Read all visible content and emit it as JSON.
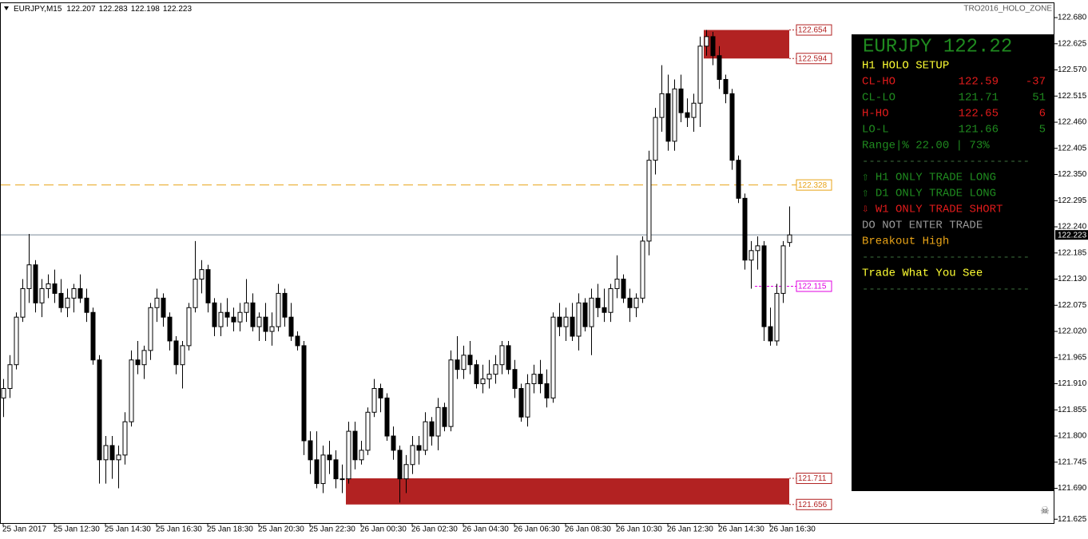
{
  "chart_data": {
    "type": "candlestick",
    "symbol": "EURJPY,M15",
    "header_values": [
      122.207,
      122.283,
      122.198,
      122.223
    ],
    "indicator": "TRO2016_HOLO_ZONE",
    "up_color": "#ffffff",
    "down_color": "#000000",
    "ylim": [
      121.617,
      122.712
    ],
    "yticks": [
      {
        "value": 122.68,
        "label": "122.680"
      },
      122.625,
      {
        "value": 122.57,
        "label": "122.570"
      },
      122.515,
      {
        "value": 122.46,
        "label": "122.460"
      },
      122.405,
      {
        "value": 122.35,
        "label": "122.350"
      },
      122.295,
      {
        "value": 122.24,
        "label": "122.240"
      },
      122.185,
      {
        "value": 122.13,
        "label": "122.130"
      },
      122.075,
      {
        "value": 122.02,
        "label": "122.020"
      },
      121.965,
      {
        "value": 121.91,
        "label": "121.910"
      },
      121.855,
      {
        "value": 121.8,
        "label": "121.800"
      },
      121.745,
      {
        "value": 121.69,
        "label": "121.690"
      },
      121.625
    ],
    "current_price": 122.223,
    "levels": [
      {
        "value": 122.328,
        "color": "#e8a317",
        "style": "long"
      },
      {
        "value": 122.115,
        "color": "#e000e0",
        "style": "short"
      }
    ],
    "zones": [
      {
        "high": 122.654,
        "low": 122.594,
        "color": "#b22222"
      },
      {
        "high": 121.711,
        "low": 121.656,
        "color": "#b22222"
      }
    ],
    "categories": [
      "25 Jan 2017",
      null,
      null,
      null,
      null,
      null,
      null,
      null,
      "25 Jan 12:30",
      null,
      null,
      null,
      null,
      null,
      null,
      null,
      "25 Jan 14:30",
      null,
      null,
      null,
      null,
      null,
      null,
      null,
      "25 Jan 16:30",
      null,
      null,
      null,
      null,
      null,
      null,
      null,
      "25 Jan 18:30",
      null,
      null,
      null,
      null,
      null,
      null,
      null,
      "25 Jan 20:30",
      null,
      null,
      null,
      null,
      null,
      null,
      null,
      "25 Jan 22:30",
      null,
      null,
      null,
      null,
      null,
      null,
      null,
      "26 Jan 00:30",
      null,
      null,
      null,
      null,
      null,
      null,
      null,
      "26 Jan 02:30",
      null,
      null,
      null,
      null,
      null,
      null,
      null,
      "26 Jan 04:30",
      null,
      null,
      null,
      null,
      null,
      null,
      null,
      "26 Jan 06:30",
      null,
      null,
      null,
      null,
      null,
      null,
      null,
      "26 Jan 08:30",
      null,
      null,
      null,
      null,
      null,
      null,
      null,
      "26 Jan 10:30",
      null,
      null,
      null,
      null,
      null,
      null,
      null,
      "26 Jan 12:30",
      null,
      null,
      null,
      null,
      null,
      null,
      null,
      "26 Jan 14:30",
      null,
      null,
      null,
      null,
      null,
      null,
      null,
      "26 Jan 16:30",
      null,
      null,
      null
    ],
    "ohlc": [
      [
        121.88,
        121.92,
        121.84,
        121.9
      ],
      [
        121.9,
        121.97,
        121.88,
        121.95
      ],
      [
        121.95,
        122.06,
        121.94,
        122.05
      ],
      [
        122.05,
        122.13,
        122.04,
        122.11
      ],
      [
        122.11,
        122.225,
        122.08,
        122.16
      ],
      [
        122.16,
        122.17,
        122.06,
        122.08
      ],
      [
        122.08,
        122.13,
        122.05,
        122.11
      ],
      [
        122.11,
        122.14,
        122.09,
        122.12
      ],
      [
        122.12,
        122.15,
        122.08,
        122.1
      ],
      [
        122.1,
        122.13,
        122.06,
        122.07
      ],
      [
        122.07,
        122.11,
        122.05,
        122.09
      ],
      [
        122.09,
        122.12,
        122.06,
        122.11
      ],
      [
        122.11,
        122.14,
        122.08,
        122.09
      ],
      [
        122.09,
        122.11,
        122.04,
        122.06
      ],
      [
        122.06,
        122.07,
        121.95,
        121.96
      ],
      [
        121.96,
        121.97,
        121.7,
        121.75
      ],
      [
        121.75,
        121.8,
        121.7,
        121.78
      ],
      [
        121.78,
        121.8,
        121.71,
        121.75
      ],
      [
        121.75,
        121.78,
        121.69,
        121.76
      ],
      [
        121.76,
        121.85,
        121.74,
        121.83
      ],
      [
        121.83,
        121.98,
        121.82,
        121.96
      ],
      [
        121.96,
        122.0,
        121.93,
        121.95
      ],
      [
        121.95,
        121.99,
        121.92,
        121.98
      ],
      [
        121.98,
        122.08,
        121.96,
        122.07
      ],
      [
        122.07,
        122.11,
        122.04,
        122.09
      ],
      [
        122.09,
        122.1,
        122.03,
        122.05
      ],
      [
        122.05,
        122.06,
        121.98,
        122.0
      ],
      [
        122.0,
        122.01,
        121.93,
        121.95
      ],
      [
        121.95,
        122.0,
        121.9,
        121.99
      ],
      [
        121.99,
        122.08,
        121.98,
        122.07
      ],
      [
        122.07,
        122.21,
        122.06,
        122.13
      ],
      [
        122.13,
        122.17,
        122.1,
        122.15
      ],
      [
        122.15,
        122.16,
        122.06,
        122.08
      ],
      [
        122.08,
        122.09,
        122.01,
        122.03
      ],
      [
        122.03,
        122.08,
        122.01,
        122.06
      ],
      [
        122.06,
        122.09,
        122.03,
        122.05
      ],
      [
        122.05,
        122.07,
        122.02,
        122.04
      ],
      [
        122.04,
        122.08,
        122.02,
        122.06
      ],
      [
        122.06,
        122.13,
        122.04,
        122.08
      ],
      [
        122.08,
        122.1,
        122.02,
        122.03
      ],
      [
        122.03,
        122.06,
        122.0,
        122.05
      ],
      [
        122.05,
        122.08,
        122.0,
        122.02
      ],
      [
        122.02,
        122.06,
        121.99,
        122.03
      ],
      [
        122.03,
        122.12,
        122.02,
        122.1
      ],
      [
        122.1,
        122.11,
        122.03,
        122.05
      ],
      [
        122.05,
        122.08,
        122.0,
        122.01
      ],
      [
        122.01,
        122.02,
        121.98,
        121.99
      ],
      [
        121.99,
        122.0,
        121.76,
        121.79
      ],
      [
        121.79,
        121.81,
        121.72,
        121.75
      ],
      [
        121.75,
        121.81,
        121.69,
        121.7
      ],
      [
        121.7,
        121.78,
        121.68,
        121.76
      ],
      [
        121.76,
        121.79,
        121.72,
        121.75
      ],
      [
        121.75,
        121.77,
        121.69,
        121.71
      ],
      [
        121.71,
        121.74,
        121.68,
        121.71
      ],
      [
        121.71,
        121.83,
        121.7,
        121.81
      ],
      [
        121.81,
        121.83,
        121.73,
        121.75
      ],
      [
        121.75,
        121.79,
        121.74,
        121.77
      ],
      [
        121.77,
        121.86,
        121.76,
        121.85
      ],
      [
        121.85,
        121.92,
        121.84,
        121.9
      ],
      [
        121.9,
        121.91,
        121.85,
        121.88
      ],
      [
        121.88,
        121.89,
        121.79,
        121.8
      ],
      [
        121.8,
        121.82,
        121.75,
        121.77
      ],
      [
        121.77,
        121.78,
        121.66,
        121.71
      ],
      [
        121.71,
        121.76,
        121.68,
        121.74
      ],
      [
        121.74,
        121.8,
        121.72,
        121.78
      ],
      [
        121.78,
        121.8,
        121.74,
        121.77
      ],
      [
        121.77,
        121.85,
        121.76,
        121.83
      ],
      [
        121.83,
        121.84,
        121.78,
        121.8
      ],
      [
        121.8,
        121.88,
        121.77,
        121.86
      ],
      [
        121.86,
        121.87,
        121.81,
        121.82
      ],
      [
        121.82,
        121.98,
        121.81,
        121.96
      ],
      [
        121.96,
        122.01,
        121.92,
        121.94
      ],
      [
        121.94,
        121.99,
        121.92,
        121.97
      ],
      [
        121.97,
        122.0,
        121.93,
        121.95
      ],
      [
        121.95,
        121.96,
        121.9,
        121.91
      ],
      [
        121.91,
        121.95,
        121.89,
        121.92
      ],
      [
        121.92,
        121.96,
        121.9,
        121.93
      ],
      [
        121.93,
        121.97,
        121.91,
        121.95
      ],
      [
        121.95,
        122.0,
        121.93,
        121.99
      ],
      [
        121.99,
        122.0,
        121.93,
        121.94
      ],
      [
        121.94,
        121.96,
        121.88,
        121.9
      ],
      [
        121.9,
        121.91,
        121.83,
        121.84
      ],
      [
        121.84,
        121.93,
        121.82,
        121.91
      ],
      [
        121.91,
        121.95,
        121.89,
        121.93
      ],
      [
        121.93,
        121.96,
        121.89,
        121.91
      ],
      [
        121.91,
        121.94,
        121.86,
        121.88
      ],
      [
        121.88,
        122.06,
        121.87,
        122.05
      ],
      [
        122.05,
        122.08,
        122.01,
        122.03
      ],
      [
        122.03,
        122.07,
        122.0,
        122.05
      ],
      [
        122.05,
        122.08,
        122.0,
        122.01
      ],
      [
        122.01,
        122.1,
        121.98,
        122.08
      ],
      [
        122.08,
        122.09,
        122.02,
        122.03
      ],
      [
        122.03,
        122.11,
        121.97,
        122.09
      ],
      [
        122.09,
        122.12,
        122.05,
        122.07
      ],
      [
        122.07,
        122.11,
        122.04,
        122.06
      ],
      [
        122.06,
        122.12,
        122.04,
        122.11
      ],
      [
        122.11,
        122.18,
        122.09,
        122.13
      ],
      [
        122.13,
        122.14,
        122.08,
        122.09
      ],
      [
        122.09,
        122.11,
        122.04,
        122.07
      ],
      [
        122.07,
        122.1,
        122.05,
        122.09
      ],
      [
        122.09,
        122.22,
        122.08,
        122.21
      ],
      [
        122.21,
        122.4,
        122.18,
        122.38
      ],
      [
        122.38,
        122.49,
        122.35,
        122.47
      ],
      [
        122.47,
        122.58,
        122.44,
        122.52
      ],
      [
        122.52,
        122.56,
        122.4,
        122.42
      ],
      [
        122.42,
        122.55,
        122.4,
        122.53
      ],
      [
        122.53,
        122.56,
        122.46,
        122.48
      ],
      [
        122.48,
        122.51,
        122.45,
        122.47
      ],
      [
        122.47,
        122.52,
        122.44,
        122.5
      ],
      [
        122.5,
        122.64,
        122.45,
        122.62
      ],
      [
        122.62,
        122.654,
        122.6,
        122.64
      ],
      [
        122.64,
        122.65,
        122.58,
        122.6
      ],
      [
        122.6,
        122.62,
        122.53,
        122.55
      ],
      [
        122.55,
        122.56,
        122.5,
        122.52
      ],
      [
        122.52,
        122.53,
        122.36,
        122.38
      ],
      [
        122.38,
        122.39,
        122.29,
        122.3
      ],
      [
        122.3,
        122.31,
        122.15,
        122.17
      ],
      [
        122.17,
        122.21,
        122.11,
        122.19
      ],
      [
        122.19,
        122.22,
        122.15,
        122.2
      ],
      [
        122.2,
        122.21,
        122.0,
        122.03
      ],
      [
        122.03,
        122.07,
        121.99,
        122.0
      ],
      [
        122.0,
        122.12,
        121.99,
        122.1
      ],
      [
        122.1,
        122.21,
        122.08,
        122.2
      ],
      [
        122.207,
        122.283,
        122.198,
        122.223
      ]
    ],
    "panel": {
      "title": "EURJPY 122.22",
      "title_color": "#1f8a1f",
      "rows": [
        {
          "text": "H1 HOLO SETUP",
          "color": "#ffff33"
        },
        {
          "cells": [
            "CL-HO",
            122.59,
            -37
          ],
          "color": "#e01b1b"
        },
        {
          "cells": [
            "CL-LO",
            121.71,
            51
          ],
          "color": "#1f8a1f"
        },
        {
          "cells": [
            "H-HO",
            122.65,
            6
          ],
          "color": "#e01b1b"
        },
        {
          "cells": [
            "LO-L",
            121.66,
            5
          ],
          "color": "#1f8a1f"
        },
        {
          "text": "Range|% 22.00 | 73%",
          "color": "#1f8a1f"
        },
        {
          "text": "-------------------------",
          "color": "#3a6a3a"
        },
        {
          "text": "⇧ H1 ONLY TRADE LONG",
          "color": "#1f8a1f"
        },
        {
          "text": "⇧ D1 ONLY TRADE LONG",
          "color": "#1f8a1f"
        },
        {
          "text": "⇩ W1 ONLY TRADE SHORT",
          "color": "#e01b1b"
        },
        {
          "text": "DO NOT ENTER TRADE",
          "color": "#9a9a9a"
        },
        {
          "text": "Breakout High",
          "color": "#e8a317"
        },
        {
          "text": "-------------------------",
          "color": "#3a6a3a"
        },
        {
          "text": "Trade What You See",
          "color": "#ffff33"
        },
        {
          "text": "-------------------------",
          "color": "#3a6a3a"
        }
      ]
    }
  }
}
